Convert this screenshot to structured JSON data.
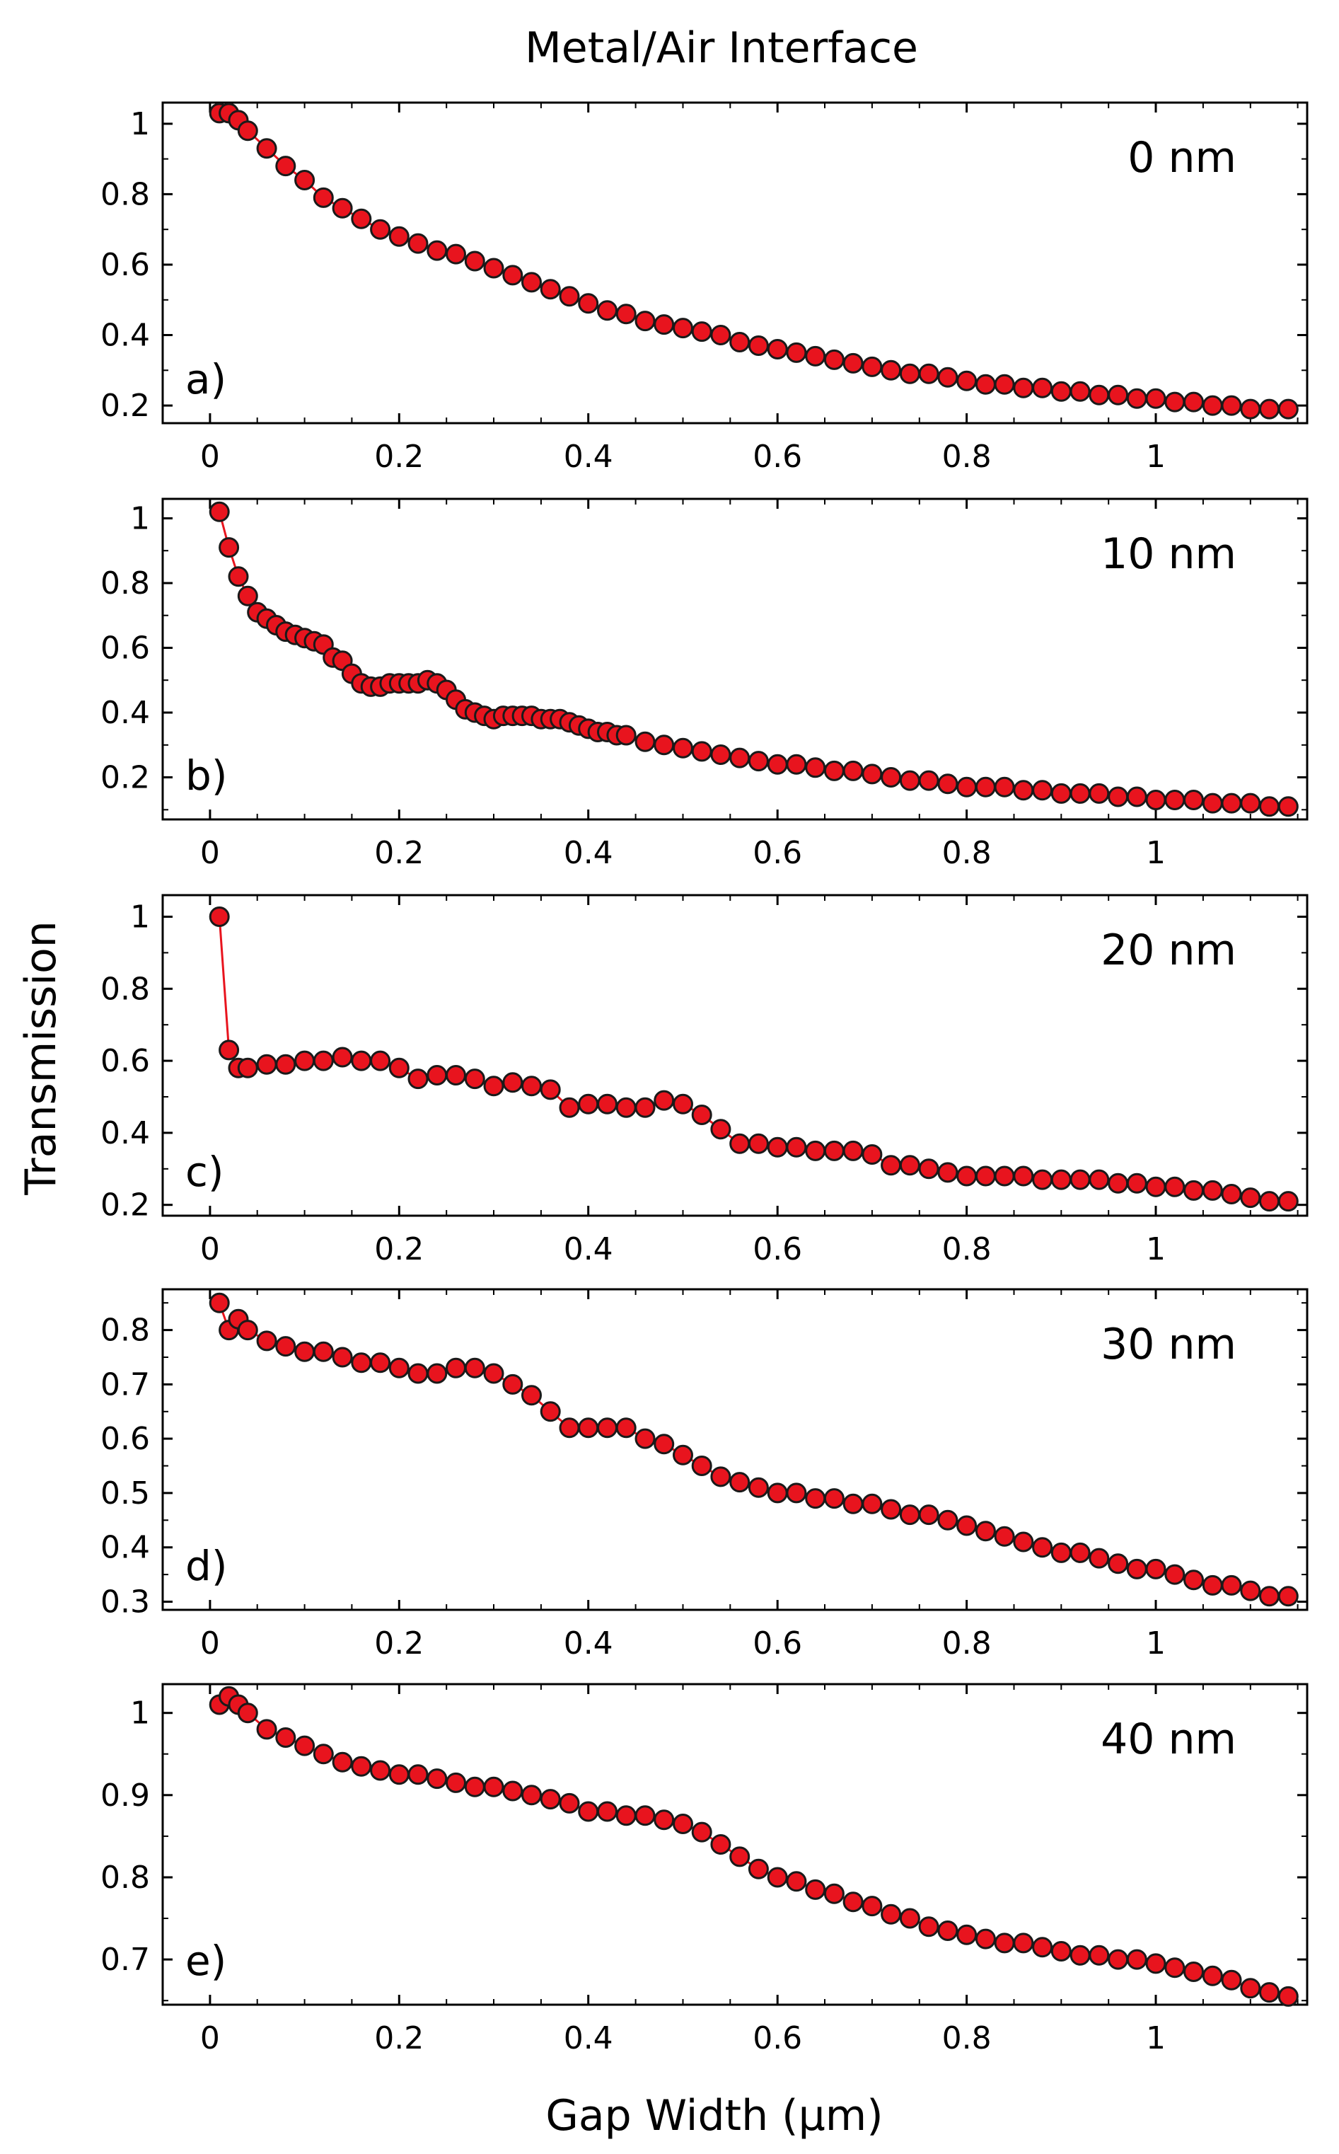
{
  "figure": {
    "title": "Metal/Air Interface",
    "xlabel": "Gap Width (μm)",
    "ylabel": "Transmission"
  },
  "colors": {
    "marker_fill": "#e8141e",
    "marker_edge": "#1a1a1a",
    "line": "#e8141e"
  },
  "chart_data": [
    {
      "type": "line",
      "panel_label": "a)",
      "annotation": "0 nm",
      "xlabel": "Gap Width (μm)",
      "ylabel": "Transmission",
      "xlim": [
        -0.05,
        1.16
      ],
      "ylim": [
        0.15,
        1.06
      ],
      "xticks": [
        0,
        0.2,
        0.4,
        0.6,
        0.8,
        1
      ],
      "xtick_labels": [
        "0",
        "0.2",
        "0.4",
        "0.6",
        "0.8",
        "1"
      ],
      "yticks": [
        0.2,
        0.4,
        0.6,
        0.8,
        1
      ],
      "ytick_labels": [
        "0.2",
        "0.4",
        "0.6",
        "0.8",
        "1"
      ],
      "x": [
        0.01,
        0.02,
        0.03,
        0.04,
        0.06,
        0.08,
        0.1,
        0.12,
        0.14,
        0.16,
        0.18,
        0.2,
        0.22,
        0.24,
        0.26,
        0.28,
        0.3,
        0.32,
        0.34,
        0.36,
        0.38,
        0.4,
        0.42,
        0.44,
        0.46,
        0.48,
        0.5,
        0.52,
        0.54,
        0.56,
        0.58,
        0.6,
        0.62,
        0.64,
        0.66,
        0.68,
        0.7,
        0.72,
        0.74,
        0.76,
        0.78,
        0.8,
        0.82,
        0.84,
        0.86,
        0.88,
        0.9,
        0.92,
        0.94,
        0.96,
        0.98,
        1.0,
        1.02,
        1.04,
        1.06,
        1.08,
        1.1,
        1.12,
        1.14
      ],
      "y": [
        1.03,
        1.03,
        1.01,
        0.98,
        0.93,
        0.88,
        0.84,
        0.79,
        0.76,
        0.73,
        0.7,
        0.68,
        0.66,
        0.64,
        0.63,
        0.61,
        0.59,
        0.57,
        0.55,
        0.53,
        0.51,
        0.49,
        0.47,
        0.46,
        0.44,
        0.43,
        0.42,
        0.41,
        0.4,
        0.38,
        0.37,
        0.36,
        0.35,
        0.34,
        0.33,
        0.32,
        0.31,
        0.3,
        0.29,
        0.29,
        0.28,
        0.27,
        0.26,
        0.26,
        0.25,
        0.25,
        0.24,
        0.24,
        0.23,
        0.23,
        0.22,
        0.22,
        0.21,
        0.21,
        0.2,
        0.2,
        0.19,
        0.19,
        0.19
      ]
    },
    {
      "type": "line",
      "panel_label": "b)",
      "annotation": "10 nm",
      "xlabel": "Gap Width (μm)",
      "ylabel": "Transmission",
      "xlim": [
        -0.05,
        1.16
      ],
      "ylim": [
        0.07,
        1.06
      ],
      "xticks": [
        0,
        0.2,
        0.4,
        0.6,
        0.8,
        1
      ],
      "xtick_labels": [
        "0",
        "0.2",
        "0.4",
        "0.6",
        "0.8",
        "1"
      ],
      "yticks": [
        0.2,
        0.4,
        0.6,
        0.8,
        1
      ],
      "ytick_labels": [
        "0.2",
        "0.4",
        "0.6",
        "0.8",
        "1"
      ],
      "x": [
        0.01,
        0.02,
        0.03,
        0.04,
        0.05,
        0.06,
        0.07,
        0.08,
        0.09,
        0.1,
        0.11,
        0.12,
        0.13,
        0.14,
        0.15,
        0.16,
        0.17,
        0.18,
        0.19,
        0.2,
        0.21,
        0.22,
        0.23,
        0.24,
        0.25,
        0.26,
        0.27,
        0.28,
        0.29,
        0.3,
        0.31,
        0.32,
        0.33,
        0.34,
        0.35,
        0.36,
        0.37,
        0.38,
        0.39,
        0.4,
        0.41,
        0.42,
        0.43,
        0.44,
        0.46,
        0.48,
        0.5,
        0.52,
        0.54,
        0.56,
        0.58,
        0.6,
        0.62,
        0.64,
        0.66,
        0.68,
        0.7,
        0.72,
        0.74,
        0.76,
        0.78,
        0.8,
        0.82,
        0.84,
        0.86,
        0.88,
        0.9,
        0.92,
        0.94,
        0.96,
        0.98,
        1.0,
        1.02,
        1.04,
        1.06,
        1.08,
        1.1,
        1.12,
        1.14
      ],
      "y": [
        1.02,
        0.91,
        0.82,
        0.76,
        0.71,
        0.69,
        0.67,
        0.65,
        0.64,
        0.63,
        0.62,
        0.61,
        0.57,
        0.56,
        0.52,
        0.49,
        0.48,
        0.48,
        0.49,
        0.49,
        0.49,
        0.49,
        0.5,
        0.49,
        0.47,
        0.44,
        0.41,
        0.4,
        0.39,
        0.38,
        0.39,
        0.39,
        0.39,
        0.39,
        0.38,
        0.38,
        0.38,
        0.37,
        0.36,
        0.35,
        0.34,
        0.34,
        0.33,
        0.33,
        0.31,
        0.3,
        0.29,
        0.28,
        0.27,
        0.26,
        0.25,
        0.24,
        0.24,
        0.23,
        0.22,
        0.22,
        0.21,
        0.2,
        0.19,
        0.19,
        0.18,
        0.17,
        0.17,
        0.17,
        0.16,
        0.16,
        0.15,
        0.15,
        0.15,
        0.14,
        0.14,
        0.13,
        0.13,
        0.13,
        0.12,
        0.12,
        0.12,
        0.11,
        0.11
      ]
    },
    {
      "type": "line",
      "panel_label": "c)",
      "annotation": "20 nm",
      "xlabel": "Gap Width (μm)",
      "ylabel": "Transmission",
      "xlim": [
        -0.05,
        1.16
      ],
      "ylim": [
        0.17,
        1.06
      ],
      "xticks": [
        0,
        0.2,
        0.4,
        0.6,
        0.8,
        1
      ],
      "xtick_labels": [
        "0",
        "0.2",
        "0.4",
        "0.6",
        "0.8",
        "1"
      ],
      "yticks": [
        0.2,
        0.4,
        0.6,
        0.8,
        1
      ],
      "ytick_labels": [
        "0.2",
        "0.4",
        "0.6",
        "0.8",
        "1"
      ],
      "x": [
        0.01,
        0.02,
        0.03,
        0.04,
        0.06,
        0.08,
        0.1,
        0.12,
        0.14,
        0.16,
        0.18,
        0.2,
        0.22,
        0.24,
        0.26,
        0.28,
        0.3,
        0.32,
        0.34,
        0.36,
        0.38,
        0.4,
        0.42,
        0.44,
        0.46,
        0.48,
        0.5,
        0.52,
        0.54,
        0.56,
        0.58,
        0.6,
        0.62,
        0.64,
        0.66,
        0.68,
        0.7,
        0.72,
        0.74,
        0.76,
        0.78,
        0.8,
        0.82,
        0.84,
        0.86,
        0.88,
        0.9,
        0.92,
        0.94,
        0.96,
        0.98,
        1.0,
        1.02,
        1.04,
        1.06,
        1.08,
        1.1,
        1.12,
        1.14
      ],
      "y": [
        1.0,
        0.63,
        0.58,
        0.58,
        0.59,
        0.59,
        0.6,
        0.6,
        0.61,
        0.6,
        0.6,
        0.58,
        0.55,
        0.56,
        0.56,
        0.55,
        0.53,
        0.54,
        0.53,
        0.52,
        0.47,
        0.48,
        0.48,
        0.47,
        0.47,
        0.49,
        0.48,
        0.45,
        0.41,
        0.37,
        0.37,
        0.36,
        0.36,
        0.35,
        0.35,
        0.35,
        0.34,
        0.31,
        0.31,
        0.3,
        0.29,
        0.28,
        0.28,
        0.28,
        0.28,
        0.27,
        0.27,
        0.27,
        0.27,
        0.26,
        0.26,
        0.25,
        0.25,
        0.24,
        0.24,
        0.23,
        0.22,
        0.21,
        0.21
      ]
    },
    {
      "type": "line",
      "panel_label": "d)",
      "annotation": "30 nm",
      "xlabel": "Gap Width (μm)",
      "ylabel": "Transmission",
      "xlim": [
        -0.05,
        1.16
      ],
      "ylim": [
        0.285,
        0.875
      ],
      "xticks": [
        0,
        0.2,
        0.4,
        0.6,
        0.8,
        1
      ],
      "xtick_labels": [
        "0",
        "0.2",
        "0.4",
        "0.6",
        "0.8",
        "1"
      ],
      "yticks": [
        0.3,
        0.4,
        0.5,
        0.6,
        0.7,
        0.8
      ],
      "ytick_labels": [
        "0.3",
        "0.4",
        "0.5",
        "0.6",
        "0.7",
        "0.8"
      ],
      "x": [
        0.01,
        0.02,
        0.03,
        0.04,
        0.06,
        0.08,
        0.1,
        0.12,
        0.14,
        0.16,
        0.18,
        0.2,
        0.22,
        0.24,
        0.26,
        0.28,
        0.3,
        0.32,
        0.34,
        0.36,
        0.38,
        0.4,
        0.42,
        0.44,
        0.46,
        0.48,
        0.5,
        0.52,
        0.54,
        0.56,
        0.58,
        0.6,
        0.62,
        0.64,
        0.66,
        0.68,
        0.7,
        0.72,
        0.74,
        0.76,
        0.78,
        0.8,
        0.82,
        0.84,
        0.86,
        0.88,
        0.9,
        0.92,
        0.94,
        0.96,
        0.98,
        1.0,
        1.02,
        1.04,
        1.06,
        1.08,
        1.1,
        1.12,
        1.14
      ],
      "y": [
        0.85,
        0.8,
        0.82,
        0.8,
        0.78,
        0.77,
        0.76,
        0.76,
        0.75,
        0.74,
        0.74,
        0.73,
        0.72,
        0.72,
        0.73,
        0.73,
        0.72,
        0.7,
        0.68,
        0.65,
        0.62,
        0.62,
        0.62,
        0.62,
        0.6,
        0.59,
        0.57,
        0.55,
        0.53,
        0.52,
        0.51,
        0.5,
        0.5,
        0.49,
        0.49,
        0.48,
        0.48,
        0.47,
        0.46,
        0.46,
        0.45,
        0.44,
        0.43,
        0.42,
        0.41,
        0.4,
        0.39,
        0.39,
        0.38,
        0.37,
        0.36,
        0.36,
        0.35,
        0.34,
        0.33,
        0.33,
        0.32,
        0.31,
        0.31
      ]
    },
    {
      "type": "line",
      "panel_label": "e)",
      "annotation": "40 nm",
      "xlabel": "Gap Width (μm)",
      "ylabel": "Transmission",
      "xlim": [
        -0.05,
        1.16
      ],
      "ylim": [
        0.645,
        1.035
      ],
      "xticks": [
        0,
        0.2,
        0.4,
        0.6,
        0.8,
        1
      ],
      "xtick_labels": [
        "0",
        "0.2",
        "0.4",
        "0.6",
        "0.8",
        "1"
      ],
      "yticks": [
        0.7,
        0.8,
        0.9,
        1
      ],
      "ytick_labels": [
        "0.7",
        "0.8",
        "0.9",
        "1"
      ],
      "x": [
        0.01,
        0.02,
        0.03,
        0.04,
        0.06,
        0.08,
        0.1,
        0.12,
        0.14,
        0.16,
        0.18,
        0.2,
        0.22,
        0.24,
        0.26,
        0.28,
        0.3,
        0.32,
        0.34,
        0.36,
        0.38,
        0.4,
        0.42,
        0.44,
        0.46,
        0.48,
        0.5,
        0.52,
        0.54,
        0.56,
        0.58,
        0.6,
        0.62,
        0.64,
        0.66,
        0.68,
        0.7,
        0.72,
        0.74,
        0.76,
        0.78,
        0.8,
        0.82,
        0.84,
        0.86,
        0.88,
        0.9,
        0.92,
        0.94,
        0.96,
        0.98,
        1.0,
        1.02,
        1.04,
        1.06,
        1.08,
        1.1,
        1.12,
        1.14
      ],
      "y": [
        1.01,
        1.02,
        1.01,
        1.0,
        0.98,
        0.97,
        0.96,
        0.95,
        0.94,
        0.935,
        0.93,
        0.925,
        0.925,
        0.92,
        0.915,
        0.91,
        0.91,
        0.905,
        0.9,
        0.895,
        0.89,
        0.88,
        0.88,
        0.875,
        0.875,
        0.87,
        0.865,
        0.855,
        0.84,
        0.825,
        0.81,
        0.8,
        0.795,
        0.785,
        0.78,
        0.77,
        0.765,
        0.755,
        0.75,
        0.74,
        0.735,
        0.73,
        0.725,
        0.72,
        0.72,
        0.715,
        0.71,
        0.705,
        0.705,
        0.7,
        0.7,
        0.695,
        0.69,
        0.685,
        0.68,
        0.675,
        0.665,
        0.66,
        0.655
      ]
    }
  ]
}
